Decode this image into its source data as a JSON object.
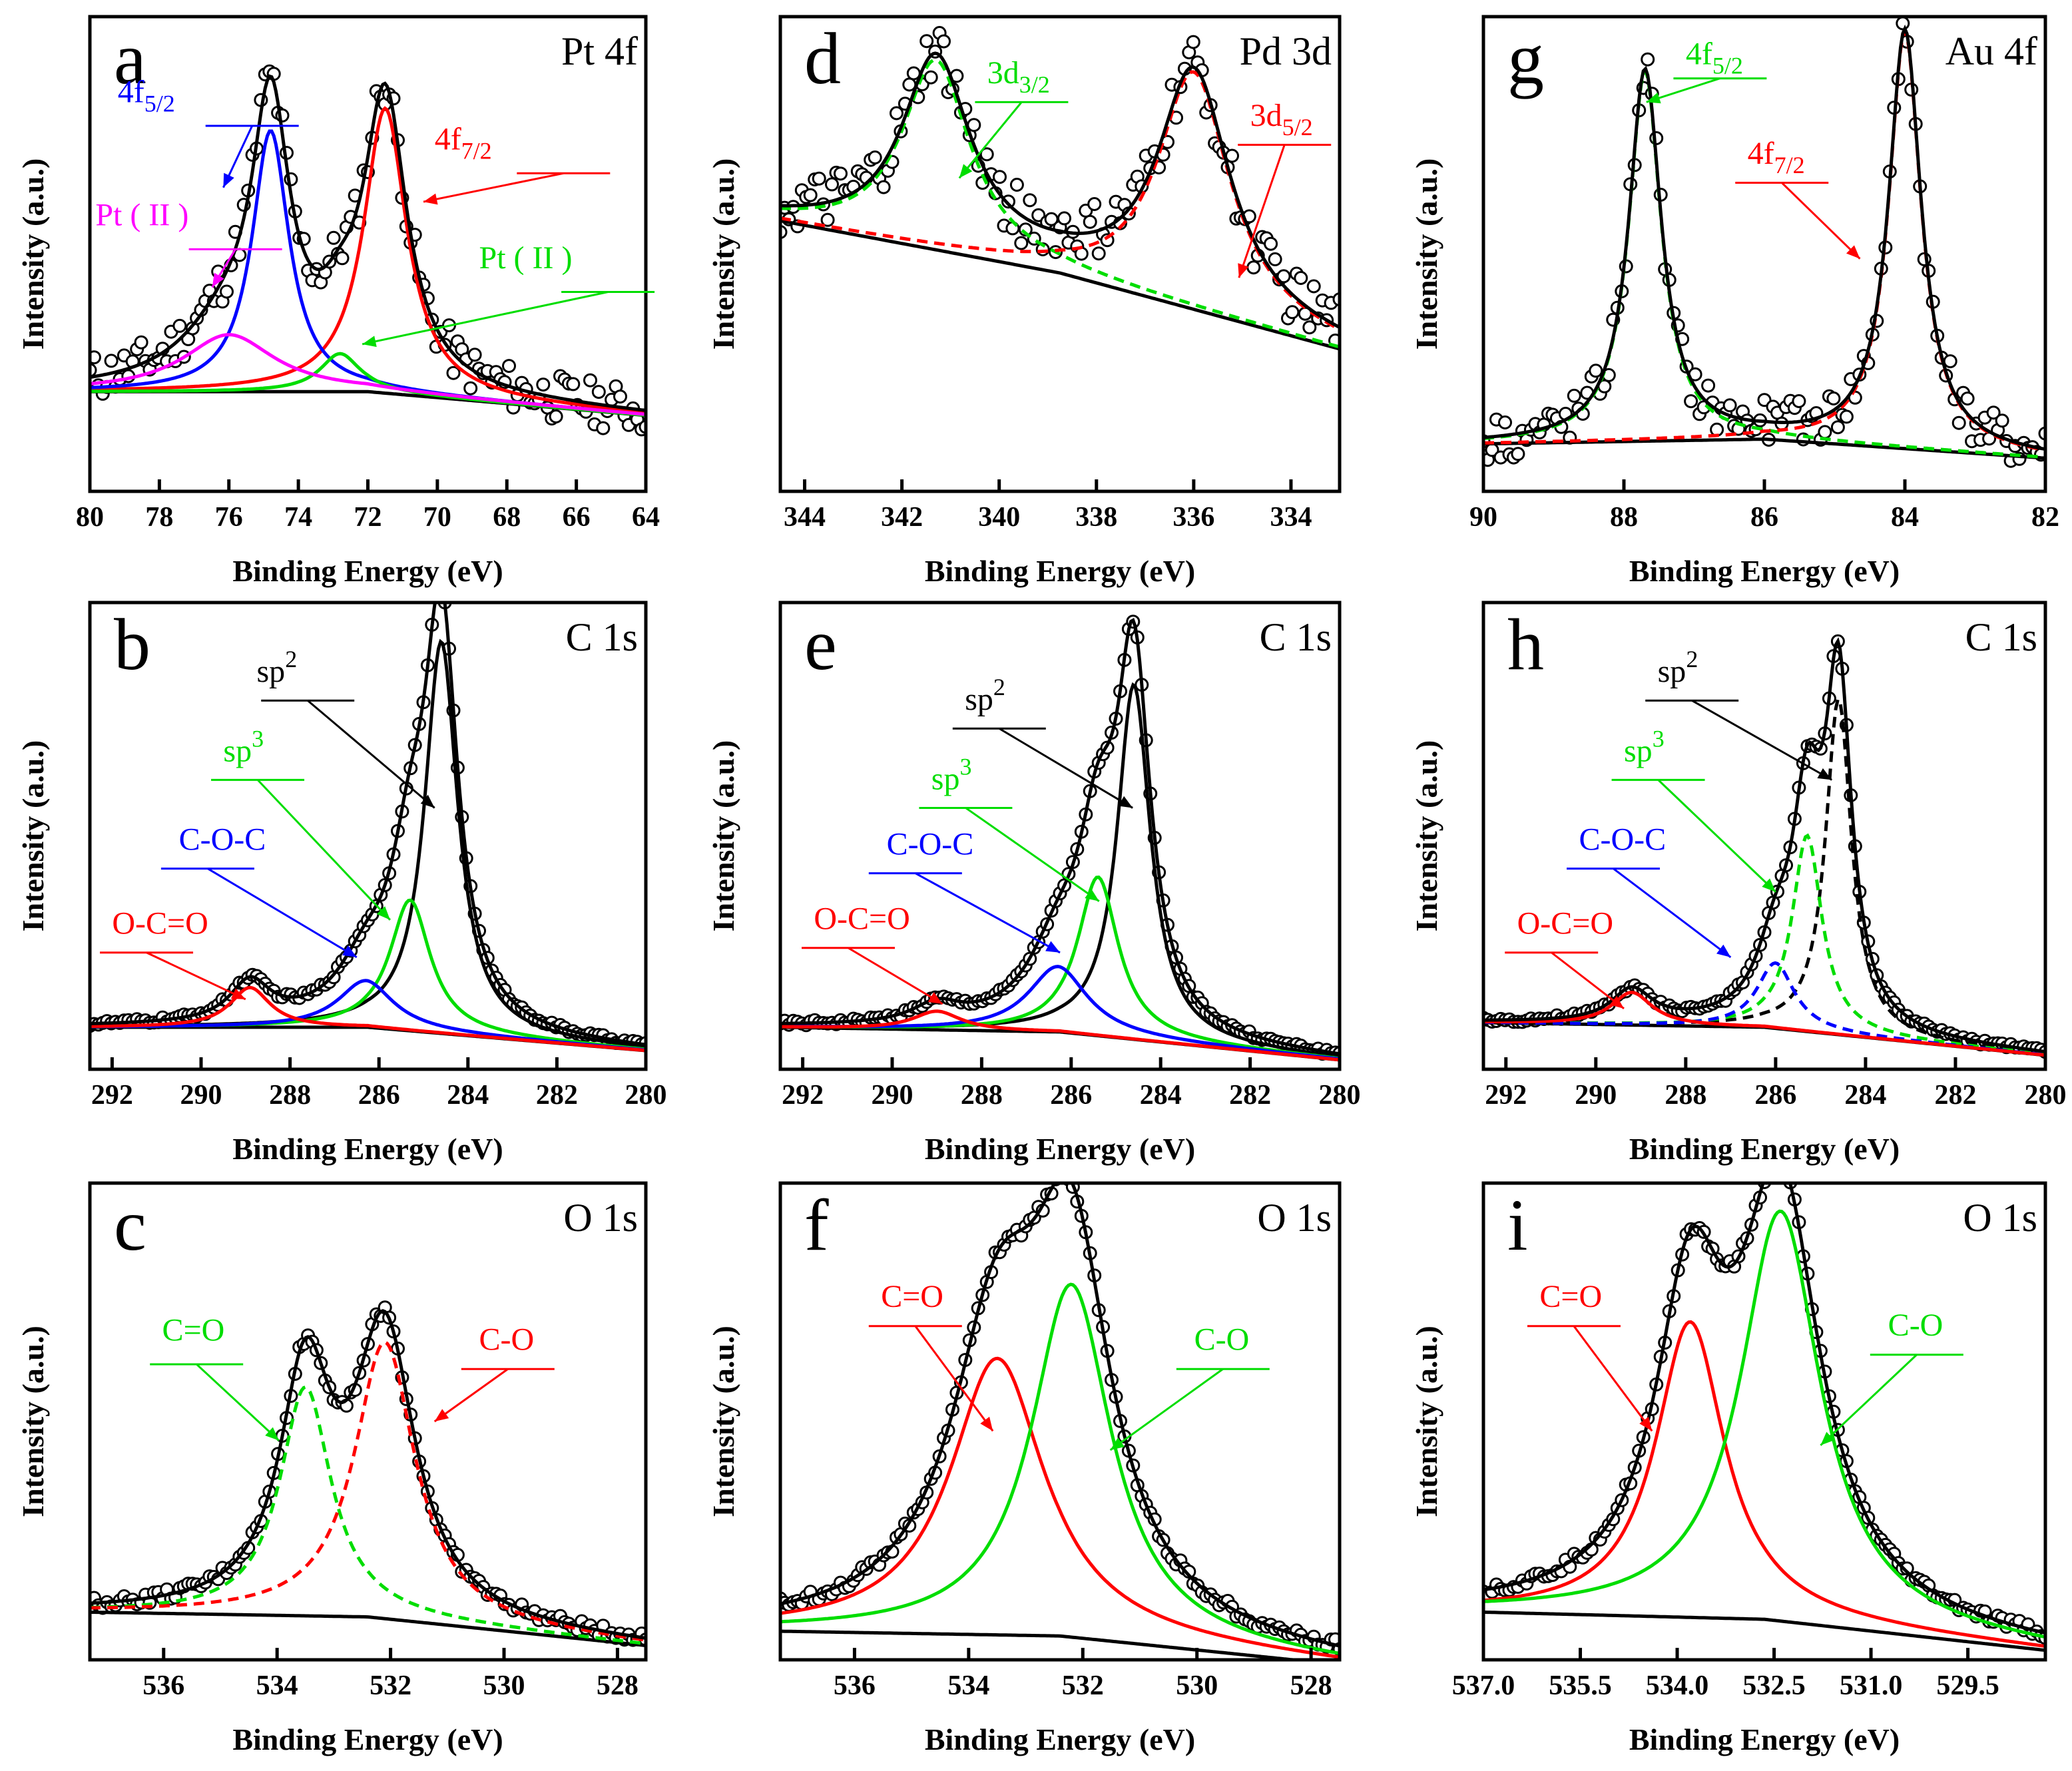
{
  "chart_data": [
    {
      "id": "a",
      "letter": "a",
      "region": "Pt 4f",
      "type": "line",
      "xlabel": "Binding Energy (eV)",
      "ylabel": "Intensity (a.u.)",
      "xlim": [
        80,
        64
      ],
      "xticks": [
        80,
        78,
        76,
        74,
        72,
        70,
        68,
        66,
        64
      ],
      "peaks": [
        {
          "name": "Pt 4f7/2",
          "center": 71.5,
          "color": "#ff0000"
        },
        {
          "name": "Pt 4f5/2",
          "center": 74.8,
          "color": "#0000ff"
        },
        {
          "name": "Pt (II)",
          "center": 72.8,
          "color": "#00dd00"
        },
        {
          "name": "Pt (II)",
          "center": 76.0,
          "color": "#ff00ff"
        }
      ],
      "annotations": [
        {
          "main": "4f",
          "sub": "5/2",
          "color": "#0000ff"
        },
        {
          "main": "4f",
          "sub": "7/2",
          "color": "#ff0000"
        },
        {
          "main": "Pt ( II )",
          "sub": "",
          "color": "#ff00ff"
        },
        {
          "main": "Pt ( II )",
          "sub": "",
          "color": "#00dd00"
        }
      ]
    },
    {
      "id": "b",
      "letter": "b",
      "region": "C 1s",
      "type": "line",
      "xlabel": "Binding Energy (eV)",
      "ylabel": "Intensity (a.u.)",
      "xlim": [
        292.5,
        280
      ],
      "xticks": [
        292,
        290,
        288,
        286,
        284,
        282,
        280
      ],
      "peaks": [
        {
          "name": "sp2",
          "center": 284.6,
          "color": "#000000"
        },
        {
          "name": "sp3",
          "center": 285.3,
          "color": "#00dd00"
        },
        {
          "name": "C-O-C",
          "center": 286.3,
          "color": "#0000ff"
        },
        {
          "name": "O-C=O",
          "center": 288.9,
          "color": "#ff0000"
        }
      ],
      "annotations": [
        {
          "main": "sp",
          "sup": "2",
          "color": "#000000"
        },
        {
          "main": "sp",
          "sup": "3",
          "color": "#00dd00"
        },
        {
          "main": "C-O-C",
          "color": "#0000ff"
        },
        {
          "main": "O-C=O",
          "color": "#ff0000"
        }
      ]
    },
    {
      "id": "c",
      "letter": "c",
      "region": "O 1s",
      "type": "line",
      "xlabel": "Binding Energy (eV)",
      "ylabel": "Intensity (a.u.)",
      "xlim": [
        537.3,
        527.5
      ],
      "xticks": [
        536,
        534,
        532,
        530,
        528
      ],
      "peaks": [
        {
          "name": "C=O",
          "center": 533.5,
          "color": "#00dd00"
        },
        {
          "name": "C-O",
          "center": 532.1,
          "color": "#ff0000"
        }
      ],
      "annotations": [
        {
          "main": "C=O",
          "color": "#00dd00"
        },
        {
          "main": "C-O",
          "color": "#ff0000"
        }
      ]
    },
    {
      "id": "d",
      "letter": "d",
      "region": "Pd 3d",
      "type": "line",
      "xlabel": "Binding Energy (eV)",
      "ylabel": "Intensity (a.u.)",
      "xlim": [
        344.5,
        333
      ],
      "xticks": [
        344,
        342,
        340,
        338,
        336,
        334
      ],
      "peaks": [
        {
          "name": "Pd 3d3/2",
          "center": 341.3,
          "color": "#00dd00"
        },
        {
          "name": "Pd 3d5/2",
          "center": 336.0,
          "color": "#ff0000"
        }
      ],
      "annotations": [
        {
          "main": "3d",
          "sub": "3/2",
          "color": "#00dd00"
        },
        {
          "main": "3d",
          "sub": "5/2",
          "color": "#ff0000"
        }
      ]
    },
    {
      "id": "e",
      "letter": "e",
      "region": "C 1s",
      "type": "line",
      "xlabel": "Binding Energy (eV)",
      "ylabel": "Intensity (a.u.)",
      "xlim": [
        292.5,
        280
      ],
      "xticks": [
        292,
        290,
        288,
        286,
        284,
        282,
        280
      ],
      "peaks": [
        {
          "name": "sp2",
          "center": 284.6,
          "color": "#000000"
        },
        {
          "name": "sp3",
          "center": 285.4,
          "color": "#00dd00"
        },
        {
          "name": "C-O-C",
          "center": 286.3,
          "color": "#0000ff"
        },
        {
          "name": "O-C=O",
          "center": 289.0,
          "color": "#ff0000"
        }
      ],
      "annotations": [
        {
          "main": "sp",
          "sup": "2",
          "color": "#000000"
        },
        {
          "main": "sp",
          "sup": "3",
          "color": "#00dd00"
        },
        {
          "main": "C-O-C",
          "color": "#0000ff"
        },
        {
          "main": "O-C=O",
          "color": "#ff0000"
        }
      ]
    },
    {
      "id": "f",
      "letter": "f",
      "region": "O 1s",
      "type": "line",
      "xlabel": "Binding Energy (eV)",
      "ylabel": "Intensity (a.u.)",
      "xlim": [
        537.3,
        527.5
      ],
      "xticks": [
        536,
        534,
        532,
        530,
        528
      ],
      "peaks": [
        {
          "name": "C=O",
          "center": 533.5,
          "color": "#ff0000"
        },
        {
          "name": "C-O",
          "center": 532.2,
          "color": "#00dd00"
        }
      ],
      "annotations": [
        {
          "main": "C=O",
          "color": "#ff0000"
        },
        {
          "main": "C-O",
          "color": "#00dd00"
        }
      ]
    },
    {
      "id": "g",
      "letter": "g",
      "region": "Au 4f",
      "type": "line",
      "xlabel": "Binding Energy (eV)",
      "ylabel": "Intensity (a.u.)",
      "xlim": [
        90,
        82
      ],
      "xticks": [
        90,
        88,
        86,
        84,
        82
      ],
      "peaks": [
        {
          "name": "Au 4f5/2",
          "center": 87.7,
          "color": "#00dd00"
        },
        {
          "name": "Au 4f7/2",
          "center": 84.0,
          "color": "#ff0000"
        }
      ],
      "annotations": [
        {
          "main": "4f",
          "sub": "5/2",
          "color": "#00dd00"
        },
        {
          "main": "4f",
          "sub": "7/2",
          "color": "#ff0000"
        }
      ]
    },
    {
      "id": "h",
      "letter": "h",
      "region": "C 1s",
      "type": "line",
      "xlabel": "Binding Energy (eV)",
      "ylabel": "Intensity (a.u.)",
      "xlim": [
        292.5,
        280
      ],
      "xticks": [
        292,
        290,
        288,
        286,
        284,
        282,
        280
      ],
      "peaks": [
        {
          "name": "sp2",
          "center": 284.6,
          "color": "#000000"
        },
        {
          "name": "sp3",
          "center": 285.3,
          "color": "#00dd00"
        },
        {
          "name": "C-O-C",
          "center": 286.0,
          "color": "#0000ff"
        },
        {
          "name": "O-C=O",
          "center": 289.2,
          "color": "#ff0000"
        }
      ],
      "annotations": [
        {
          "main": "sp",
          "sup": "2",
          "color": "#000000"
        },
        {
          "main": "sp",
          "sup": "3",
          "color": "#00dd00"
        },
        {
          "main": "C-O-C",
          "color": "#0000ff"
        },
        {
          "main": "O-C=O",
          "color": "#ff0000"
        }
      ]
    },
    {
      "id": "i",
      "letter": "i",
      "region": "O 1s",
      "type": "line",
      "xlabel": "Binding Energy (eV)",
      "ylabel": "Intensity (a.u.)",
      "xlim": [
        537,
        528.3
      ],
      "xticks": [
        "537.0",
        "535.5",
        "534.0",
        "532.5",
        "531.0",
        "529.5"
      ],
      "peaks": [
        {
          "name": "C=O",
          "center": 533.8,
          "color": "#ff0000"
        },
        {
          "name": "C-O",
          "center": 532.4,
          "color": "#00dd00"
        }
      ],
      "annotations": [
        {
          "main": "C=O",
          "color": "#ff0000"
        },
        {
          "main": "C-O",
          "color": "#00dd00"
        }
      ]
    }
  ]
}
